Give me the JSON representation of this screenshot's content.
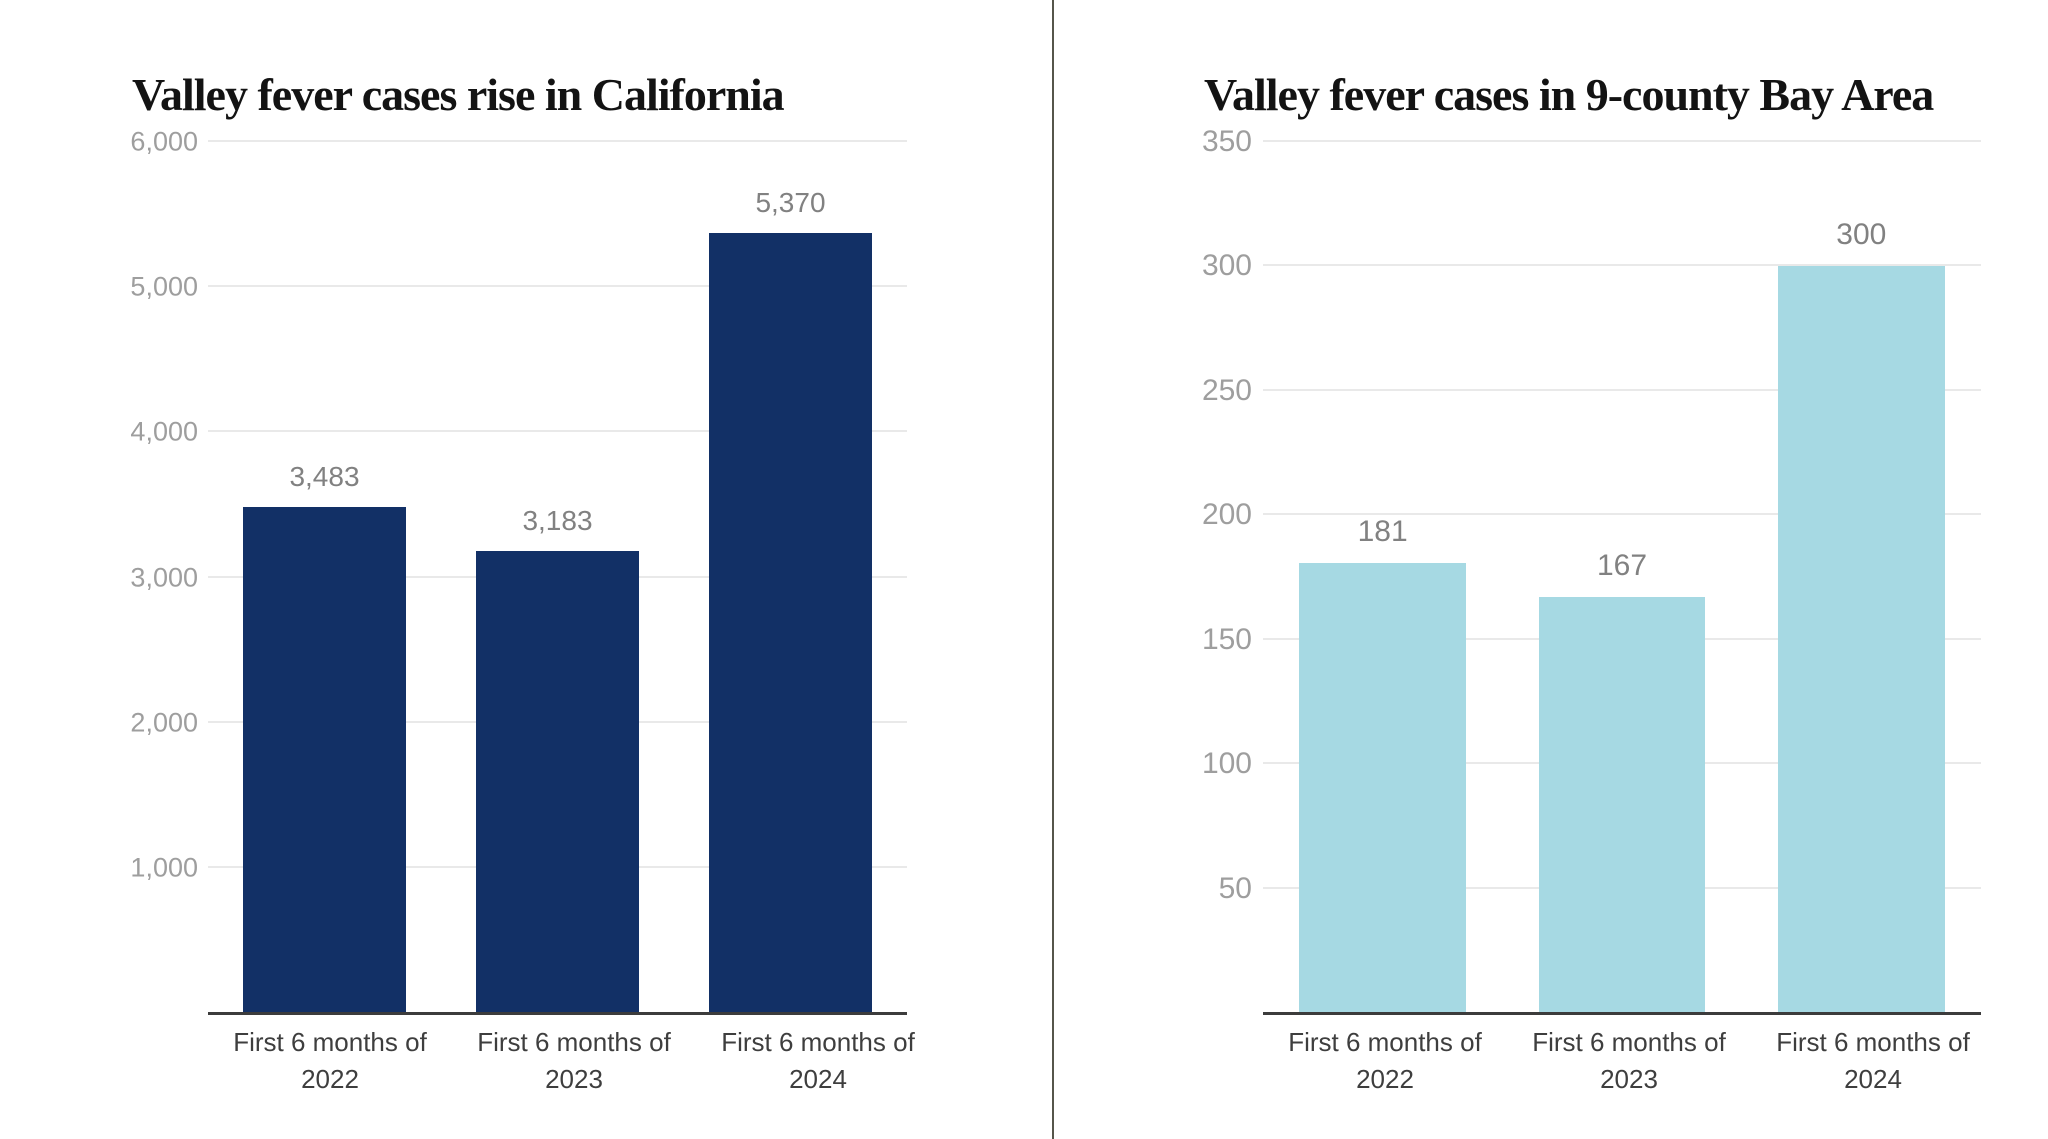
{
  "divider_color": "#56564b",
  "chart_data": [
    {
      "type": "bar",
      "title": "Valley fever cases rise in California",
      "categories": [
        "First 6 months of 2022",
        "First 6 months of 2023",
        "First 6 months of 2024"
      ],
      "values": [
        3483,
        3183,
        5370
      ],
      "value_labels": [
        "3,483",
        "3,183",
        "5,370"
      ],
      "ylim": [
        0,
        6000
      ],
      "yticks": [
        {
          "value": 1000,
          "label": "1,000"
        },
        {
          "value": 2000,
          "label": "2,000"
        },
        {
          "value": 3000,
          "label": "3,000"
        },
        {
          "value": 4000,
          "label": "4,000"
        },
        {
          "value": 5000,
          "label": "5,000"
        },
        {
          "value": 6000,
          "label": "6,000"
        }
      ],
      "bar_color": "#123066",
      "grid": true,
      "legend": null,
      "xlabel": "",
      "ylabel": ""
    },
    {
      "type": "bar",
      "title": "Valley fever cases in 9-county Bay Area",
      "categories": [
        "First 6 months of 2022",
        "First 6 months of 2023",
        "First 6 months of 2024"
      ],
      "values": [
        181,
        167,
        300
      ],
      "value_labels": [
        "181",
        "167",
        "300"
      ],
      "ylim": [
        0,
        350
      ],
      "yticks": [
        {
          "value": 50,
          "label": "50"
        },
        {
          "value": 100,
          "label": "100"
        },
        {
          "value": 150,
          "label": "150"
        },
        {
          "value": 200,
          "label": "200"
        },
        {
          "value": 250,
          "label": "250"
        },
        {
          "value": 300,
          "label": "300"
        },
        {
          "value": 350,
          "label": "350"
        }
      ],
      "bar_color": "#a6d9e3",
      "grid": true,
      "legend": null,
      "xlabel": "",
      "ylabel": ""
    }
  ]
}
